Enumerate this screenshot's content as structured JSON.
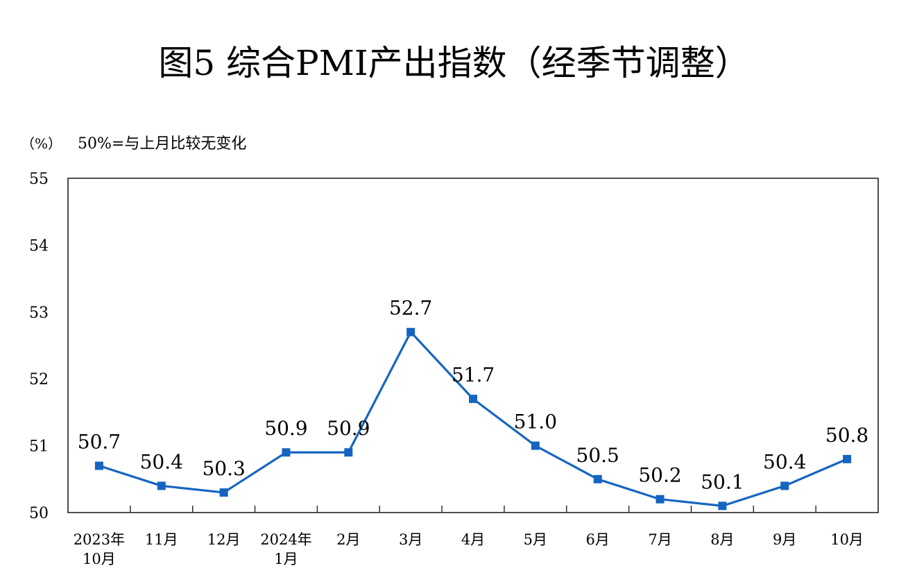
{
  "title": "图5 综合PMI产出指数（经季节调整）",
  "chart_data": {
    "type": "line",
    "title": "图5 综合PMI产出指数（经季节调整）",
    "unit_label": "（%）",
    "note": "50%=与上月比较无变化",
    "ylim": [
      50,
      55
    ],
    "yticks": [
      "50",
      "51",
      "52",
      "53",
      "54",
      "55"
    ],
    "categories": [
      [
        "2023年",
        "10月"
      ],
      [
        "11月"
      ],
      [
        "12月"
      ],
      [
        "2024年",
        "1月"
      ],
      [
        "2月"
      ],
      [
        "3月"
      ],
      [
        "4月"
      ],
      [
        "5月"
      ],
      [
        "6月"
      ],
      [
        "7月"
      ],
      [
        "8月"
      ],
      [
        "9月"
      ],
      [
        "10月"
      ]
    ],
    "series": [
      {
        "values": [
          50.7,
          50.4,
          50.3,
          50.9,
          50.9,
          52.7,
          51.7,
          51.0,
          50.5,
          50.2,
          50.1,
          50.4,
          50.8
        ],
        "labels": [
          "50.7",
          "50.4",
          "50.3",
          "50.9",
          "50.9",
          "52.7",
          "51.7",
          "51.0",
          "50.5",
          "50.2",
          "50.1",
          "50.4",
          "50.8"
        ]
      }
    ],
    "grid": false,
    "line_color": "#1565C0",
    "marker_color": "#1565C0"
  }
}
